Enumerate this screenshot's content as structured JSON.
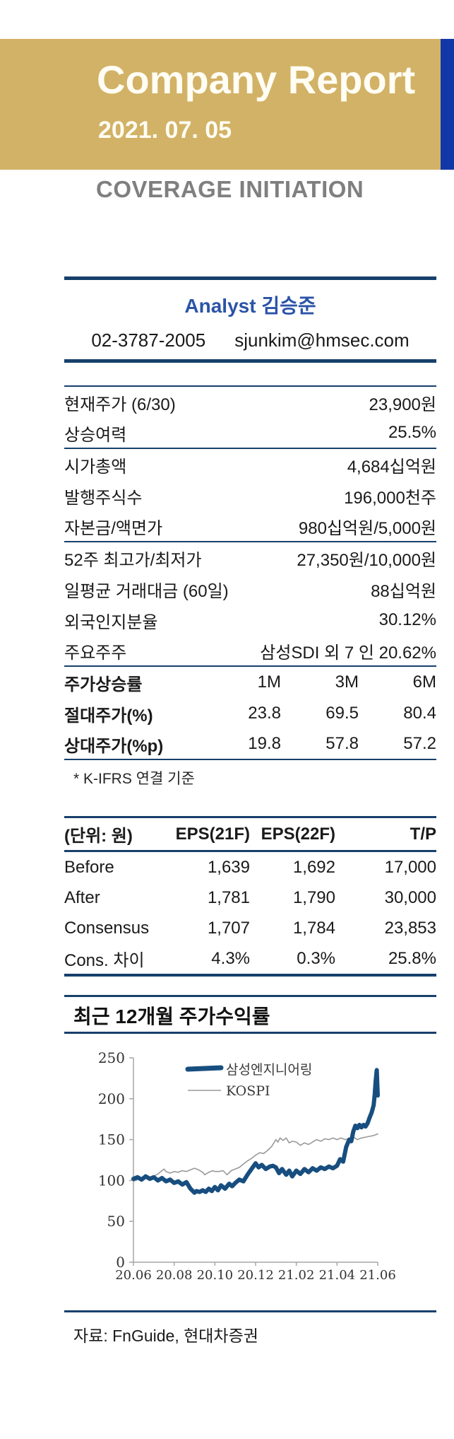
{
  "header": {
    "title": "Company Report",
    "date": "2021. 07. 05",
    "banner_color": "#d2b266",
    "strip_color": "#1238a7"
  },
  "coverage_label": "COVERAGE INITIATION",
  "analyst": {
    "title": "Analyst 김승준",
    "phone": "02-3787-2005",
    "email": "sjunkim@hmsec.com"
  },
  "info_table": {
    "rows": [
      {
        "label": "현재주가 (6/30)",
        "value": "23,900원"
      },
      {
        "label": "상승여력",
        "value": "25.5%"
      },
      {
        "label": "시가총액",
        "value": "4,684십억원"
      },
      {
        "label": "발행주식수",
        "value": "196,000천주"
      },
      {
        "label": "자본금/액면가",
        "value": "980십억원/5,000원"
      },
      {
        "label": "52주 최고가/최저가",
        "value": "27,350원/10,000원"
      },
      {
        "label": "일평균 거래대금 (60일)",
        "value": "88십억원"
      },
      {
        "label": "외국인지분율",
        "value": "30.12%"
      },
      {
        "label": "주요주주",
        "value": "삼성SDI 외 7 인 20.62%"
      }
    ],
    "performance": {
      "header_label": "주가상승률",
      "cols": [
        "1M",
        "3M",
        "6M"
      ],
      "rows": [
        {
          "label": "절대주가(%)",
          "values": [
            "23.8",
            "69.5",
            "80.4"
          ]
        },
        {
          "label": "상대주가(%p)",
          "values": [
            "19.8",
            "57.8",
            "57.2"
          ]
        }
      ]
    },
    "footnote": "* K-IFRS 연결 기준"
  },
  "eps_table": {
    "headers": [
      "(단위: 원)",
      "EPS(21F)",
      "EPS(22F)",
      "T/P"
    ],
    "rows": [
      [
        "Before",
        "1,639",
        "1,692",
        "17,000"
      ],
      [
        "After",
        "1,781",
        "1,790",
        "30,000"
      ],
      [
        "Consensus",
        "1,707",
        "1,784",
        "23,853"
      ],
      [
        "Cons. 차이",
        "4.3%",
        "0.3%",
        "25.8%"
      ]
    ]
  },
  "chart_section": {
    "title": "최근 12개월 주가수익률",
    "source": "자료: FnGuide, 현대차증권"
  },
  "chart_data": {
    "type": "line",
    "title": "최근 12개월 주가수익률",
    "xlabel": "",
    "ylabel": "",
    "ylim": [
      0,
      250
    ],
    "y_ticks": [
      0,
      50,
      100,
      150,
      200,
      250
    ],
    "x_range_months": [
      0,
      12
    ],
    "x_tick_labels": [
      "20.06",
      "20.08",
      "20.10",
      "20.12",
      "21.02",
      "21.04",
      "21.06"
    ],
    "x_tick_positions": [
      0,
      2,
      4,
      6,
      8,
      10,
      12
    ],
    "grid": false,
    "legend_position": "top-left-inside",
    "series": [
      {
        "name": "삼성엔지니어링",
        "color": "#174e7f",
        "stroke_width": 6,
        "x": [
          0,
          0.2,
          0.4,
          0.6,
          0.8,
          1.0,
          1.2,
          1.4,
          1.6,
          1.8,
          2.0,
          2.2,
          2.4,
          2.6,
          2.8,
          3.0,
          3.1,
          3.25,
          3.4,
          3.55,
          3.7,
          3.85,
          4.0,
          4.15,
          4.3,
          4.5,
          4.7,
          4.85,
          5.0,
          5.2,
          5.4,
          5.6,
          5.8,
          6.0,
          6.15,
          6.3,
          6.5,
          6.7,
          6.85,
          7.0,
          7.15,
          7.3,
          7.5,
          7.65,
          7.8,
          8.0,
          8.2,
          8.4,
          8.6,
          8.8,
          9.0,
          9.2,
          9.4,
          9.6,
          9.8,
          10.0,
          10.15,
          10.3,
          10.45,
          10.6,
          10.7,
          10.8,
          10.9,
          11.0,
          11.1,
          11.2,
          11.3,
          11.4,
          11.5,
          11.6,
          11.7,
          11.8,
          11.85,
          11.9,
          11.95,
          12.0
        ],
        "values": [
          102,
          104,
          101,
          105,
          102,
          104,
          100,
          103,
          99,
          101,
          97,
          99,
          95,
          98,
          90,
          85,
          87,
          86,
          88,
          86,
          90,
          87,
          92,
          88,
          94,
          90,
          96,
          93,
          97,
          101,
          99,
          107,
          114,
          121,
          116,
          119,
          114,
          117,
          118,
          116,
          109,
          114,
          107,
          112,
          105,
          112,
          108,
          114,
          110,
          115,
          112,
          116,
          114,
          117,
          115,
          118,
          126,
          123,
          141,
          150,
          148,
          160,
          167,
          164,
          168,
          165,
          168,
          166,
          170,
          177,
          183,
          192,
          205,
          222,
          235,
          204
        ]
      },
      {
        "name": "KOSPI",
        "color": "#999999",
        "stroke_width": 1.6,
        "x": [
          0,
          0.2,
          0.4,
          0.6,
          0.8,
          1.0,
          1.2,
          1.4,
          1.5,
          1.6,
          1.8,
          2.0,
          2.2,
          2.4,
          2.6,
          2.8,
          3.0,
          3.2,
          3.4,
          3.5,
          3.7,
          3.9,
          4.0,
          4.2,
          4.4,
          4.6,
          4.8,
          5.0,
          5.2,
          5.4,
          5.6,
          5.8,
          6.0,
          6.2,
          6.4,
          6.6,
          6.8,
          7.0,
          7.1,
          7.2,
          7.35,
          7.5,
          7.65,
          7.8,
          8.0,
          8.2,
          8.4,
          8.6,
          8.8,
          9.0,
          9.2,
          9.4,
          9.6,
          9.8,
          10.0,
          10.2,
          10.4,
          10.6,
          10.8,
          11.0,
          11.2,
          11.4,
          11.6,
          11.8,
          11.9,
          12.0
        ],
        "values": [
          99,
          101,
          102,
          104,
          103,
          105,
          108,
          112,
          114,
          111,
          109,
          111,
          110,
          112,
          111,
          113,
          115,
          113,
          110,
          107,
          110,
          112,
          111,
          111,
          112,
          107,
          112,
          114,
          116,
          120,
          124,
          127,
          131,
          134,
          133,
          137,
          142,
          150,
          147,
          152,
          149,
          152,
          146,
          148,
          147,
          143,
          146,
          144,
          147,
          150,
          148,
          151,
          150,
          152,
          150,
          152,
          150,
          151,
          153,
          150,
          152,
          153,
          154,
          155,
          156,
          157
        ]
      }
    ]
  }
}
